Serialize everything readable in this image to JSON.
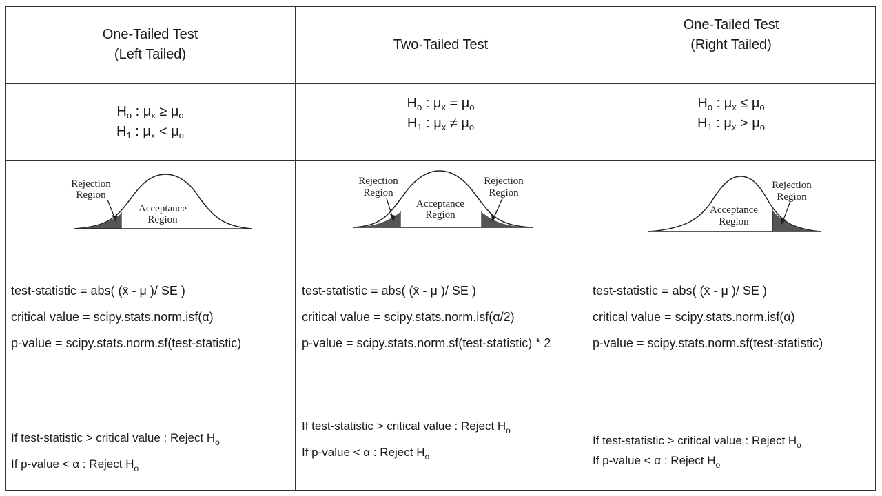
{
  "columns": [
    {
      "header_line1": "One-Tailed Test",
      "header_line2": "(Left Tailed)",
      "h0": {
        "label": "H",
        "sub": "o",
        "colon": " : ",
        "mu": "μ",
        "x": "x",
        "op": " ≥ ",
        "mu0": "μ",
        "o": "o"
      },
      "h1": {
        "label": "H",
        "sub": "1",
        "colon": " : ",
        "mu": "μ",
        "x": "x",
        "op": " < ",
        "mu0": "μ",
        "o": "o"
      },
      "diagram": {
        "labels": [
          "Rejection",
          "Region",
          "Acceptance",
          "Region"
        ]
      },
      "test_statistic": "test-statistic  = abs( (x̄ - μ )/ SE )",
      "critical_value": "critical value = scipy.stats.norm.isf(α)",
      "p_value": "p-value = scipy.stats.norm.sf(test-statistic)",
      "rule1": "If test-statistic > critical value : Reject H",
      "rule1_sub": "o",
      "rule2": "If p-value < α : Reject H",
      "rule2_sub": "o"
    },
    {
      "header_line1": "Two-Tailed Test",
      "header_line2": "",
      "h0": {
        "label": "H",
        "sub": "o",
        "colon": " : ",
        "mu": "μ",
        "x": "x",
        "op": " = ",
        "mu0": "μ",
        "o": "o"
      },
      "h1": {
        "label": "H",
        "sub": "1",
        "colon": " : ",
        "mu": "μ",
        "x": "x",
        "op": " ≠ ",
        "mu0": "μ",
        "o": "o"
      },
      "diagram": {
        "labels": [
          "Rejection",
          "Region",
          "Acceptance",
          "Region",
          "Rejection",
          "Region"
        ]
      },
      "test_statistic": "test-statistic  = abs( (x̄ - μ )/ SE )",
      "critical_value": "critical value = scipy.stats.norm.isf(α/2)",
      "p_value": "p-value = scipy.stats.norm.sf(test-statistic)  * 2",
      "rule1": "If test-statistic > critical value : Reject H",
      "rule1_sub": "o",
      "rule2": "If p-value < α : Reject H",
      "rule2_sub": "o"
    },
    {
      "header_line1": "One-Tailed Test",
      "header_line2": "(Right Tailed)",
      "h0": {
        "label": "H",
        "sub": "o",
        "colon": " : ",
        "mu": "μ",
        "x": "x",
        "op": " ≤ ",
        "mu0": "μ",
        "o": "o"
      },
      "h1": {
        "label": "H",
        "sub": "1",
        "colon": " : ",
        "mu": "μ",
        "x": "x",
        "op": " > ",
        "mu0": "μ",
        "o": "o"
      },
      "diagram": {
        "labels": [
          "Rejection",
          "Region",
          "Acceptance",
          "Region"
        ]
      },
      "test_statistic": "test-statistic  = abs( (x̄ - μ )/ SE )",
      "critical_value": "critical value = scipy.stats.norm.isf(α)",
      "p_value": "p-value = scipy.stats.norm.sf(test-statistic)",
      "rule1": "If test-statistic  > critical value : Reject H",
      "rule1_sub": "o",
      "rule2": "If p-value < α : Reject H",
      "rule2_sub": "o"
    }
  ]
}
